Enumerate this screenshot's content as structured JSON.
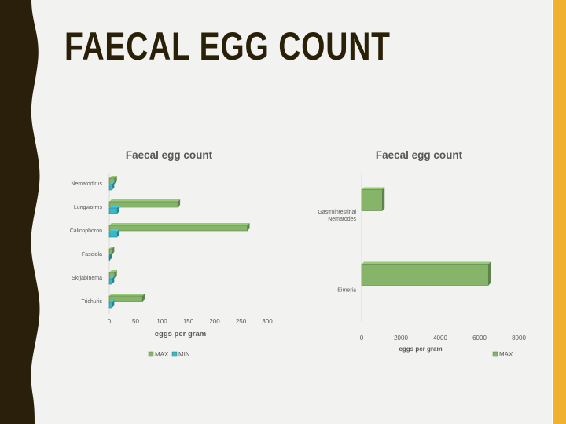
{
  "slide": {
    "title": "FAECAL EGG COUNT",
    "colors": {
      "left_band": "#2a1f0a",
      "accent_stripe": "#f0b030",
      "background": "#f2f2f0"
    }
  },
  "chart_data": [
    {
      "type": "bar",
      "orientation": "horizontal",
      "title": "Faecal egg count",
      "xlabel": "eggs per gram",
      "ylabel": "",
      "categories": [
        "Nematodirus",
        "Lungworms",
        "Calicophoron",
        "Fasciola",
        "Skrjabinema",
        "Trichuris"
      ],
      "series": [
        {
          "name": "MAX",
          "color": "#86b56a",
          "values": [
            10,
            130,
            262,
            5,
            10,
            63
          ]
        },
        {
          "name": "MIN",
          "color": "#3ab8c8",
          "values": [
            5,
            15,
            15,
            0,
            5,
            5
          ]
        }
      ],
      "xlim": [
        0,
        300
      ],
      "xticks": [
        0,
        50,
        100,
        150,
        200,
        250,
        300
      ],
      "grid": false,
      "legend": "bottom"
    },
    {
      "type": "bar",
      "orientation": "horizontal",
      "title": "Faecal egg count",
      "xlabel": "eggs per gram",
      "ylabel": "",
      "categories": [
        "Gastrointestinal Nematodes",
        "Eimeria"
      ],
      "series": [
        {
          "name": "MAX",
          "color": "#86b56a",
          "values": [
            1050,
            6450
          ]
        }
      ],
      "xlim": [
        0,
        8000
      ],
      "xticks": [
        0,
        2000,
        4000,
        6000,
        8000
      ],
      "grid": false,
      "legend": "bottom-right"
    }
  ]
}
